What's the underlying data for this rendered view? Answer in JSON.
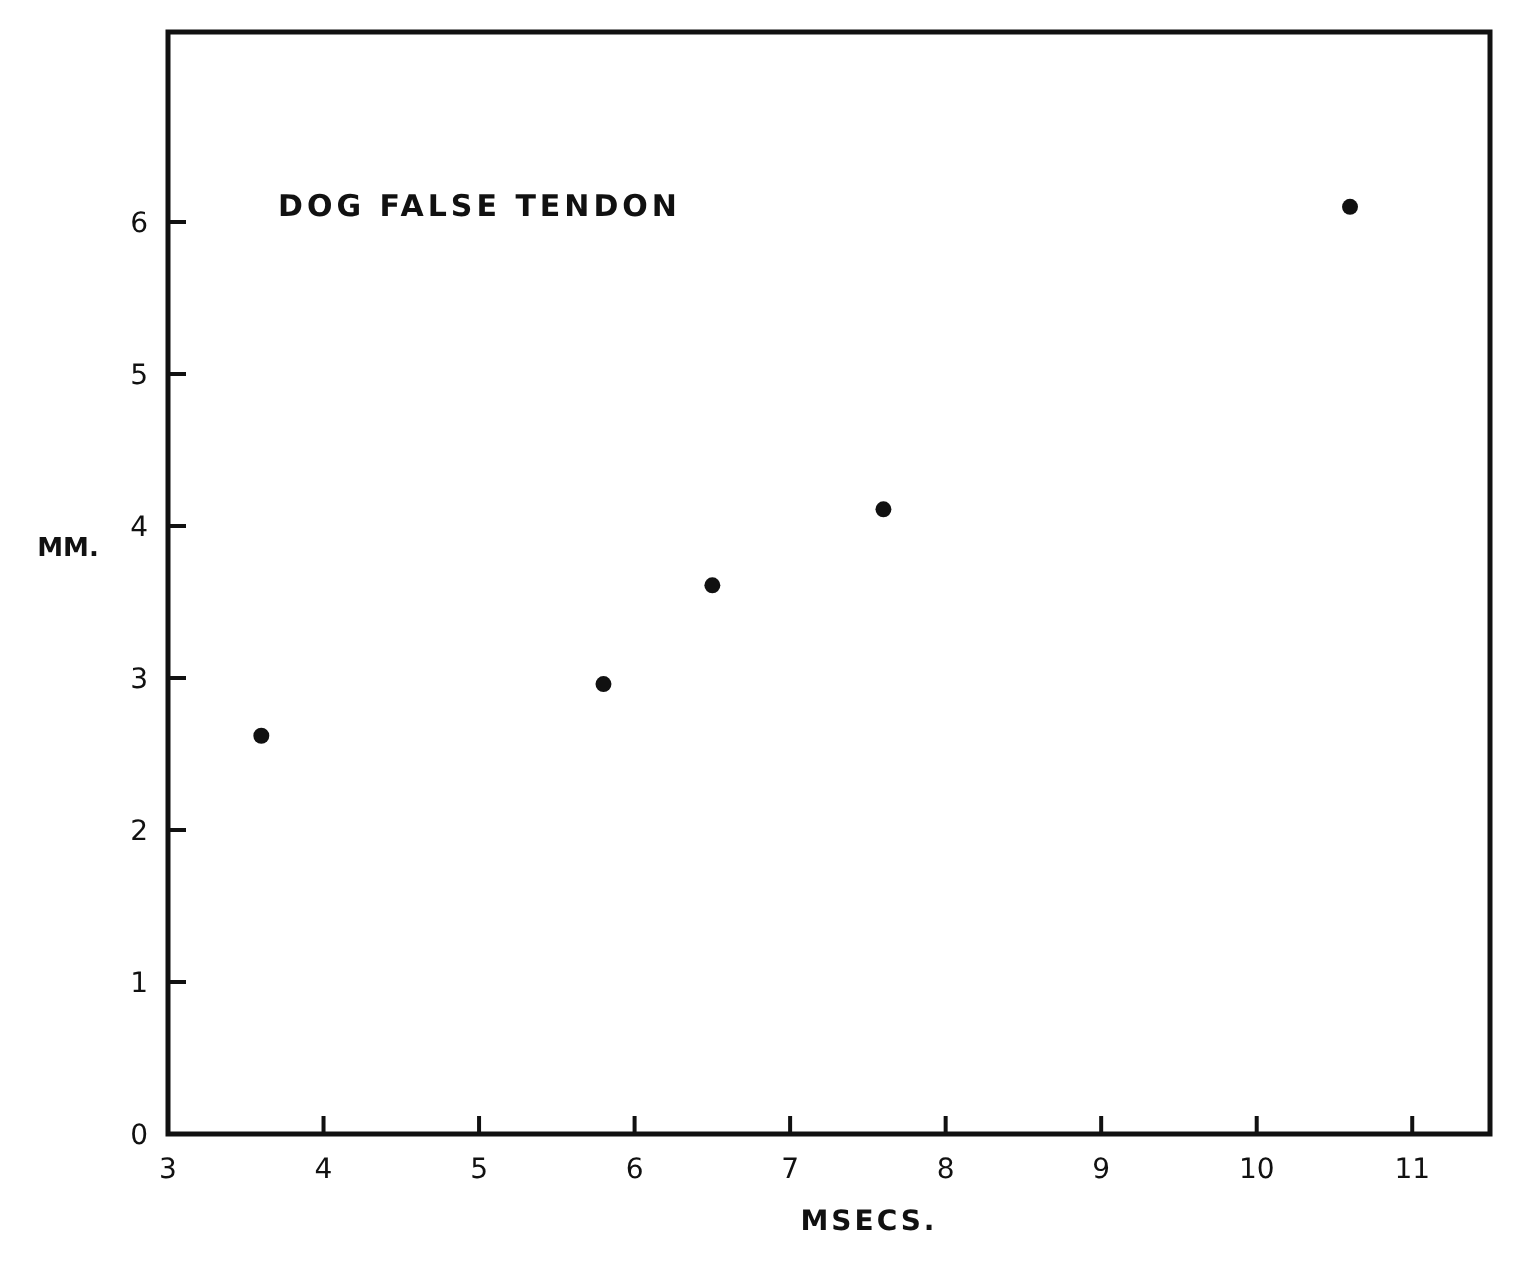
{
  "chart_data": {
    "type": "scatter",
    "annotations": [
      "DOG FALSE TENDON"
    ],
    "xlabel": "MSECS.",
    "ylabel": "MM.",
    "x": [
      3.6,
      5.8,
      6.5,
      7.6,
      10.6
    ],
    "values": [
      2.62,
      2.96,
      3.61,
      4.11,
      6.1
    ],
    "color": "#111111",
    "marker": "circle",
    "grid": false,
    "xlim": [
      3,
      11.5
    ],
    "xticks": [
      3,
      4,
      5,
      6,
      7,
      8,
      9,
      10,
      11
    ],
    "ylim": [
      0,
      7.25
    ],
    "yticks": [
      0,
      1,
      2,
      3,
      4,
      5,
      6
    ]
  }
}
